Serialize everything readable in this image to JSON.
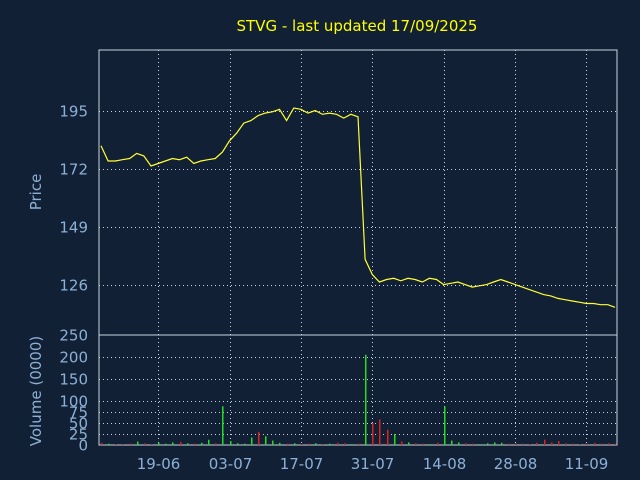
{
  "chart_data": {
    "type": "line",
    "title": "STVG - last updated 17/09/2025",
    "ylabel_price": "Price",
    "ylabel_volume": "Volume (0000)",
    "price_ticks": [
      195,
      172,
      149,
      126
    ],
    "price_ylim": [
      106,
      219
    ],
    "volume_ticks": [
      0,
      25,
      50,
      75,
      100,
      150,
      200,
      250
    ],
    "volume_ylim": [
      0,
      250
    ],
    "x_ticks": [
      {
        "index": 8,
        "label": "19-06"
      },
      {
        "index": 18,
        "label": "03-07"
      },
      {
        "index": 28,
        "label": "17-07"
      },
      {
        "index": 38,
        "label": "31-07"
      },
      {
        "index": 48,
        "label": "14-08"
      },
      {
        "index": 58,
        "label": "28-08"
      },
      {
        "index": 68,
        "label": "11-09"
      }
    ],
    "n_days": 73,
    "price": [
      181,
      175,
      175,
      175.5,
      176,
      178,
      177,
      173,
      174,
      175,
      176,
      175.5,
      176.5,
      174,
      175,
      175.5,
      176,
      178.5,
      183,
      186,
      190,
      191,
      193,
      194,
      194.5,
      195.5,
      191,
      196,
      195.5,
      194,
      195,
      193.5,
      194,
      193.5,
      192,
      193.5,
      192.5,
      136,
      130,
      127,
      128,
      128.5,
      127.5,
      128.5,
      128,
      127,
      128.5,
      128,
      126,
      126.5,
      127,
      126,
      125,
      125.5,
      126,
      127,
      128,
      127,
      126,
      125,
      124,
      123,
      122,
      121.5,
      120.5,
      120,
      119.5,
      119,
      118.5,
      118.5,
      118,
      118,
      117
    ],
    "volume": [
      5,
      3,
      2,
      2,
      3,
      8,
      4,
      2,
      5,
      3,
      6,
      7,
      4,
      3,
      5,
      12,
      4,
      88,
      9,
      4,
      3,
      17,
      30,
      20,
      10,
      5,
      3,
      4,
      2,
      3,
      4,
      2,
      3,
      5,
      4,
      2,
      3,
      205,
      50,
      58,
      35,
      25,
      8,
      6,
      4,
      3,
      2,
      5,
      88,
      10,
      6,
      4,
      3,
      2,
      4,
      6,
      5,
      3,
      4,
      3,
      2,
      5,
      12,
      6,
      9,
      4,
      3,
      2,
      3,
      5,
      3,
      4,
      3
    ],
    "volume_up": [
      false,
      true,
      false,
      false,
      false,
      true,
      false,
      false,
      true,
      true,
      true,
      false,
      true,
      false,
      true,
      true,
      false,
      true,
      true,
      true,
      true,
      true,
      false,
      true,
      true,
      true,
      false,
      true,
      false,
      false,
      true,
      false,
      true,
      false,
      false,
      true,
      false,
      true,
      false,
      false,
      false,
      true,
      false,
      true,
      false,
      false,
      true,
      false,
      true,
      true,
      true,
      false,
      false,
      true,
      true,
      true,
      true,
      false,
      false,
      false,
      false,
      false,
      false,
      false,
      false,
      false,
      false,
      false,
      false,
      false,
      false,
      false,
      false
    ],
    "grid": true,
    "colors": {
      "background": "#112034",
      "price_line": "#ffff33",
      "volume_up": "#22dd22",
      "volume_down": "#dd2222",
      "title": "#ffff00",
      "axis_text": "#8db0d6",
      "grid": "#c8d4e0",
      "frame": "#c8d4e0"
    }
  }
}
